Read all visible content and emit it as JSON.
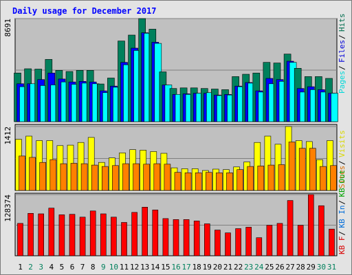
{
  "chart_data": {
    "type": "bar",
    "title": "Daily usage for December 2017",
    "categories": [
      "1",
      "2",
      "3",
      "4",
      "5",
      "6",
      "7",
      "8",
      "9",
      "10",
      "11",
      "12",
      "13",
      "14",
      "15",
      "16",
      "17",
      "18",
      "19",
      "20",
      "21",
      "22",
      "23",
      "24",
      "25",
      "26",
      "27",
      "28",
      "29",
      "30",
      "31"
    ],
    "weekend_days": [
      "2",
      "3",
      "9",
      "10",
      "16",
      "17",
      "23",
      "24",
      "30",
      "31"
    ],
    "colors": {
      "hits": "#00805c",
      "files": "#0000ff",
      "pages": "#00ffff",
      "visits": "#ffff00",
      "sites": "#ff8000",
      "kbytes": "#ff0000",
      "kbin": "#0080ff",
      "kbout": "#00c000",
      "plot_bg": "#c0c0c0",
      "title": "#0000ff",
      "weekend": "#00805c"
    },
    "panels": [
      {
        "id": "usage",
        "ymax_label": "8691",
        "ymax": 8691,
        "series": [
          {
            "name": "Hits",
            "key": "hits",
            "values": [
              4100,
              4460,
              4430,
              5250,
              4330,
              4230,
              4330,
              4330,
              3180,
              3680,
              6800,
              7300,
              8691,
              7800,
              4200,
              2800,
              2850,
              2850,
              2800,
              2750,
              2700,
              3800,
              4000,
              4100,
              5000,
              4950,
              5700,
              4500,
              3800,
              3800,
              3650
            ]
          },
          {
            "name": "Files",
            "key": "files",
            "values": [
              3200,
              3200,
              3550,
              4100,
              3600,
              3350,
              3400,
              3350,
              2600,
              3000,
              5000,
              6200,
              7500,
              6700,
              3100,
              2300,
              2350,
              2400,
              2400,
              2250,
              2300,
              3000,
              3300,
              2600,
              3650,
              3550,
              5100,
              2800,
              2950,
              2700,
              2400
            ]
          },
          {
            "name": "Pages",
            "key": "pages",
            "values": [
              2950,
              3200,
              3050,
              3100,
              3350,
              3150,
              3250,
              3200,
              2450,
              2900,
              4800,
              6000,
              7450,
              6600,
              3100,
              2300,
              2300,
              2400,
              2450,
              2200,
              2250,
              2950,
              3250,
              2500,
              3200,
              3400,
              5000,
              2500,
              2700,
              2500,
              2400
            ]
          }
        ]
      },
      {
        "id": "visits",
        "ymax_label": "1412",
        "ymax": 1412,
        "series": [
          {
            "name": "Visits",
            "key": "visits",
            "values": [
              1130,
              1200,
              1100,
              1100,
              990,
              1000,
              1060,
              1170,
              620,
              720,
              830,
              900,
              890,
              860,
              820,
              500,
              480,
              480,
              440,
              470,
              460,
              520,
              630,
              1060,
              1200,
              1020,
              1412,
              1100,
              1080,
              680,
              1100
            ]
          },
          {
            "name": "Sites",
            "key": "sites",
            "values": [
              760,
              730,
              620,
              680,
              590,
              600,
              590,
              560,
              530,
              550,
              590,
              590,
              580,
              590,
              580,
              400,
              390,
              390,
              400,
              390,
              390,
              460,
              530,
              540,
              560,
              570,
              1070,
              930,
              930,
              530,
              550
            ]
          }
        ]
      },
      {
        "id": "kbytes",
        "ymax_label": "128374",
        "ymax": 128374,
        "series": [
          {
            "name": "KBytes",
            "key": "kbytes",
            "values": [
              68000,
              89000,
              88000,
              100000,
              86000,
              87000,
              81000,
              94000,
              88000,
              81000,
              70000,
              91000,
              102000,
              96000,
              78000,
              76000,
              76000,
              73000,
              67000,
              54000,
              48000,
              57000,
              60000,
              38000,
              64000,
              68000,
              116000,
              64000,
              128374,
              105000,
              56000
            ]
          }
        ]
      }
    ],
    "legends": {
      "usage": [
        "Pages",
        "Files",
        "Hits"
      ],
      "visits": [
        "Sites",
        "Visits"
      ],
      "kbytes": [
        "KB F",
        "KB In",
        "KB Out"
      ]
    }
  }
}
